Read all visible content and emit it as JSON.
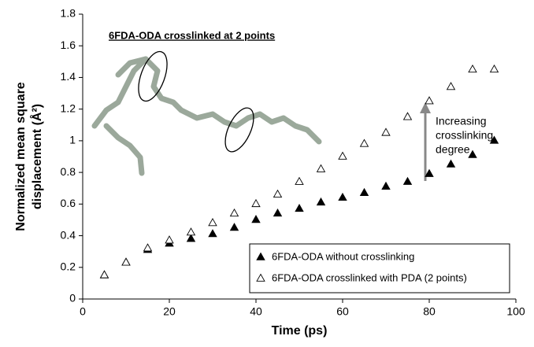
{
  "chart_data": {
    "type": "scatter",
    "xlabel": "Time (ps)",
    "ylabel": [
      "Normalized mean square",
      "displacement (Å²)"
    ],
    "x": [
      5,
      10,
      15,
      20,
      25,
      30,
      35,
      40,
      45,
      50,
      55,
      60,
      65,
      70,
      75,
      80,
      85,
      90,
      95
    ],
    "series": [
      {
        "name": "6FDA-ODA without crosslinking",
        "color": "#000000",
        "marker": "filled-triangle",
        "values": [
          0.15,
          0.23,
          0.31,
          0.35,
          0.38,
          0.41,
          0.45,
          0.5,
          0.54,
          0.57,
          0.61,
          0.64,
          0.67,
          0.71,
          0.74,
          0.79,
          0.85,
          0.91,
          1.0
        ]
      },
      {
        "name": "6FDA-ODA crosslinked with PDA (2 points)",
        "color": "#000000",
        "marker": "open-triangle",
        "values": [
          0.15,
          0.23,
          0.32,
          0.37,
          0.42,
          0.48,
          0.54,
          0.6,
          0.66,
          0.74,
          0.82,
          0.9,
          0.98,
          1.05,
          1.15,
          1.25,
          1.34,
          1.45,
          1.45
        ]
      }
    ],
    "xlim": [
      0,
      100
    ],
    "xticks": [
      0,
      20,
      40,
      60,
      80,
      100
    ],
    "ylim": [
      0,
      1.8
    ],
    "yticks": [
      0,
      0.2,
      0.4,
      0.6,
      0.8,
      1,
      1.2,
      1.4,
      1.6,
      1.8
    ],
    "grid": false,
    "legend": "lower right",
    "annotations": {
      "inset_title": "6FDA-ODA crosslinked at 2 points",
      "arrow_text": [
        "Increasing",
        "crosslinking",
        "degree"
      ]
    }
  }
}
